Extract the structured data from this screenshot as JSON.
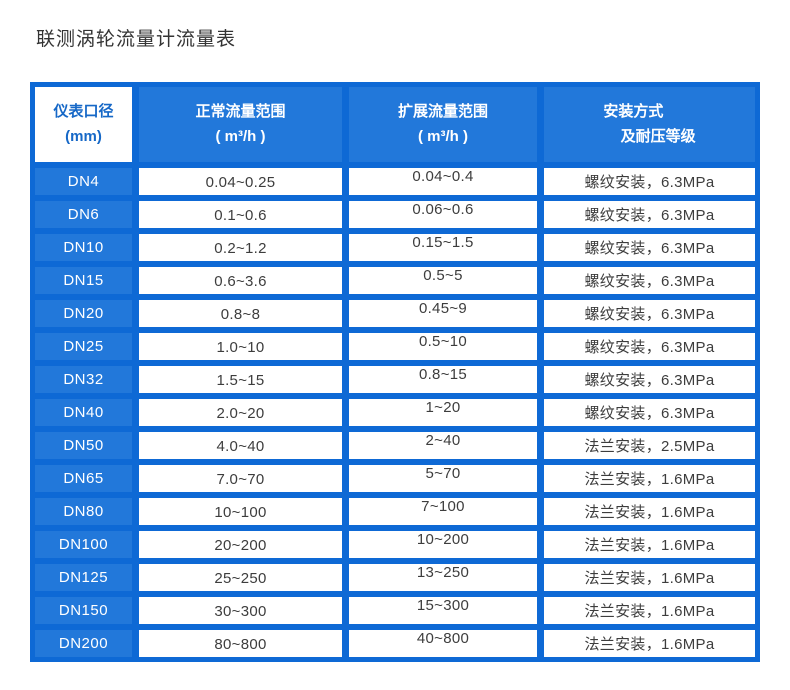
{
  "page": {
    "title": "联测涡轮流量计流量表"
  },
  "colors": {
    "frame_blue": "#0e69d5",
    "cell_blue": "#2278da",
    "header_text": "#ffffff",
    "diameter_header_text": "#1668c7",
    "data_text": "#3d3d3d",
    "title_text": "#333333"
  },
  "table": {
    "headers": [
      {
        "line1": "仪表口径",
        "line2": "(mm)"
      },
      {
        "line1": "正常流量范围",
        "line2": "( m³/h )"
      },
      {
        "line1": "扩展流量范围",
        "line2": "( m³/h )"
      },
      {
        "line1": "安装方式",
        "line2": "及耐压等级"
      }
    ],
    "rows": [
      {
        "dn": "DN4",
        "normal": "0.04~0.25",
        "extended": "0.04~0.4",
        "install": "螺纹安装，6.3MPa"
      },
      {
        "dn": "DN6",
        "normal": "0.1~0.6",
        "extended": "0.06~0.6",
        "install": "螺纹安装，6.3MPa"
      },
      {
        "dn": "DN10",
        "normal": "0.2~1.2",
        "extended": "0.15~1.5",
        "install": "螺纹安装，6.3MPa"
      },
      {
        "dn": "DN15",
        "normal": "0.6~3.6",
        "extended": "0.5~5",
        "install": "螺纹安装，6.3MPa"
      },
      {
        "dn": "DN20",
        "normal": "0.8~8",
        "extended": "0.45~9",
        "install": "螺纹安装，6.3MPa"
      },
      {
        "dn": "DN25",
        "normal": "1.0~10",
        "extended": "0.5~10",
        "install": "螺纹安装，6.3MPa"
      },
      {
        "dn": "DN32",
        "normal": "1.5~15",
        "extended": "0.8~15",
        "install": "螺纹安装，6.3MPa"
      },
      {
        "dn": "DN40",
        "normal": "2.0~20",
        "extended": "1~20",
        "install": "螺纹安装，6.3MPa"
      },
      {
        "dn": "DN50",
        "normal": "4.0~40",
        "extended": "2~40",
        "install": "法兰安装，2.5MPa"
      },
      {
        "dn": "DN65",
        "normal": "7.0~70",
        "extended": "5~70",
        "install": "法兰安装，1.6MPa"
      },
      {
        "dn": "DN80",
        "normal": "10~100",
        "extended": "7~100",
        "install": "法兰安装，1.6MPa"
      },
      {
        "dn": "DN100",
        "normal": "20~200",
        "extended": "10~200",
        "install": "法兰安装，1.6MPa"
      },
      {
        "dn": "DN125",
        "normal": "25~250",
        "extended": "13~250",
        "install": "法兰安装，1.6MPa"
      },
      {
        "dn": "DN150",
        "normal": "30~300",
        "extended": "15~300",
        "install": "法兰安装，1.6MPa"
      },
      {
        "dn": "DN200",
        "normal": "80~800",
        "extended": "40~800",
        "install": "法兰安装，1.6MPa"
      }
    ]
  }
}
